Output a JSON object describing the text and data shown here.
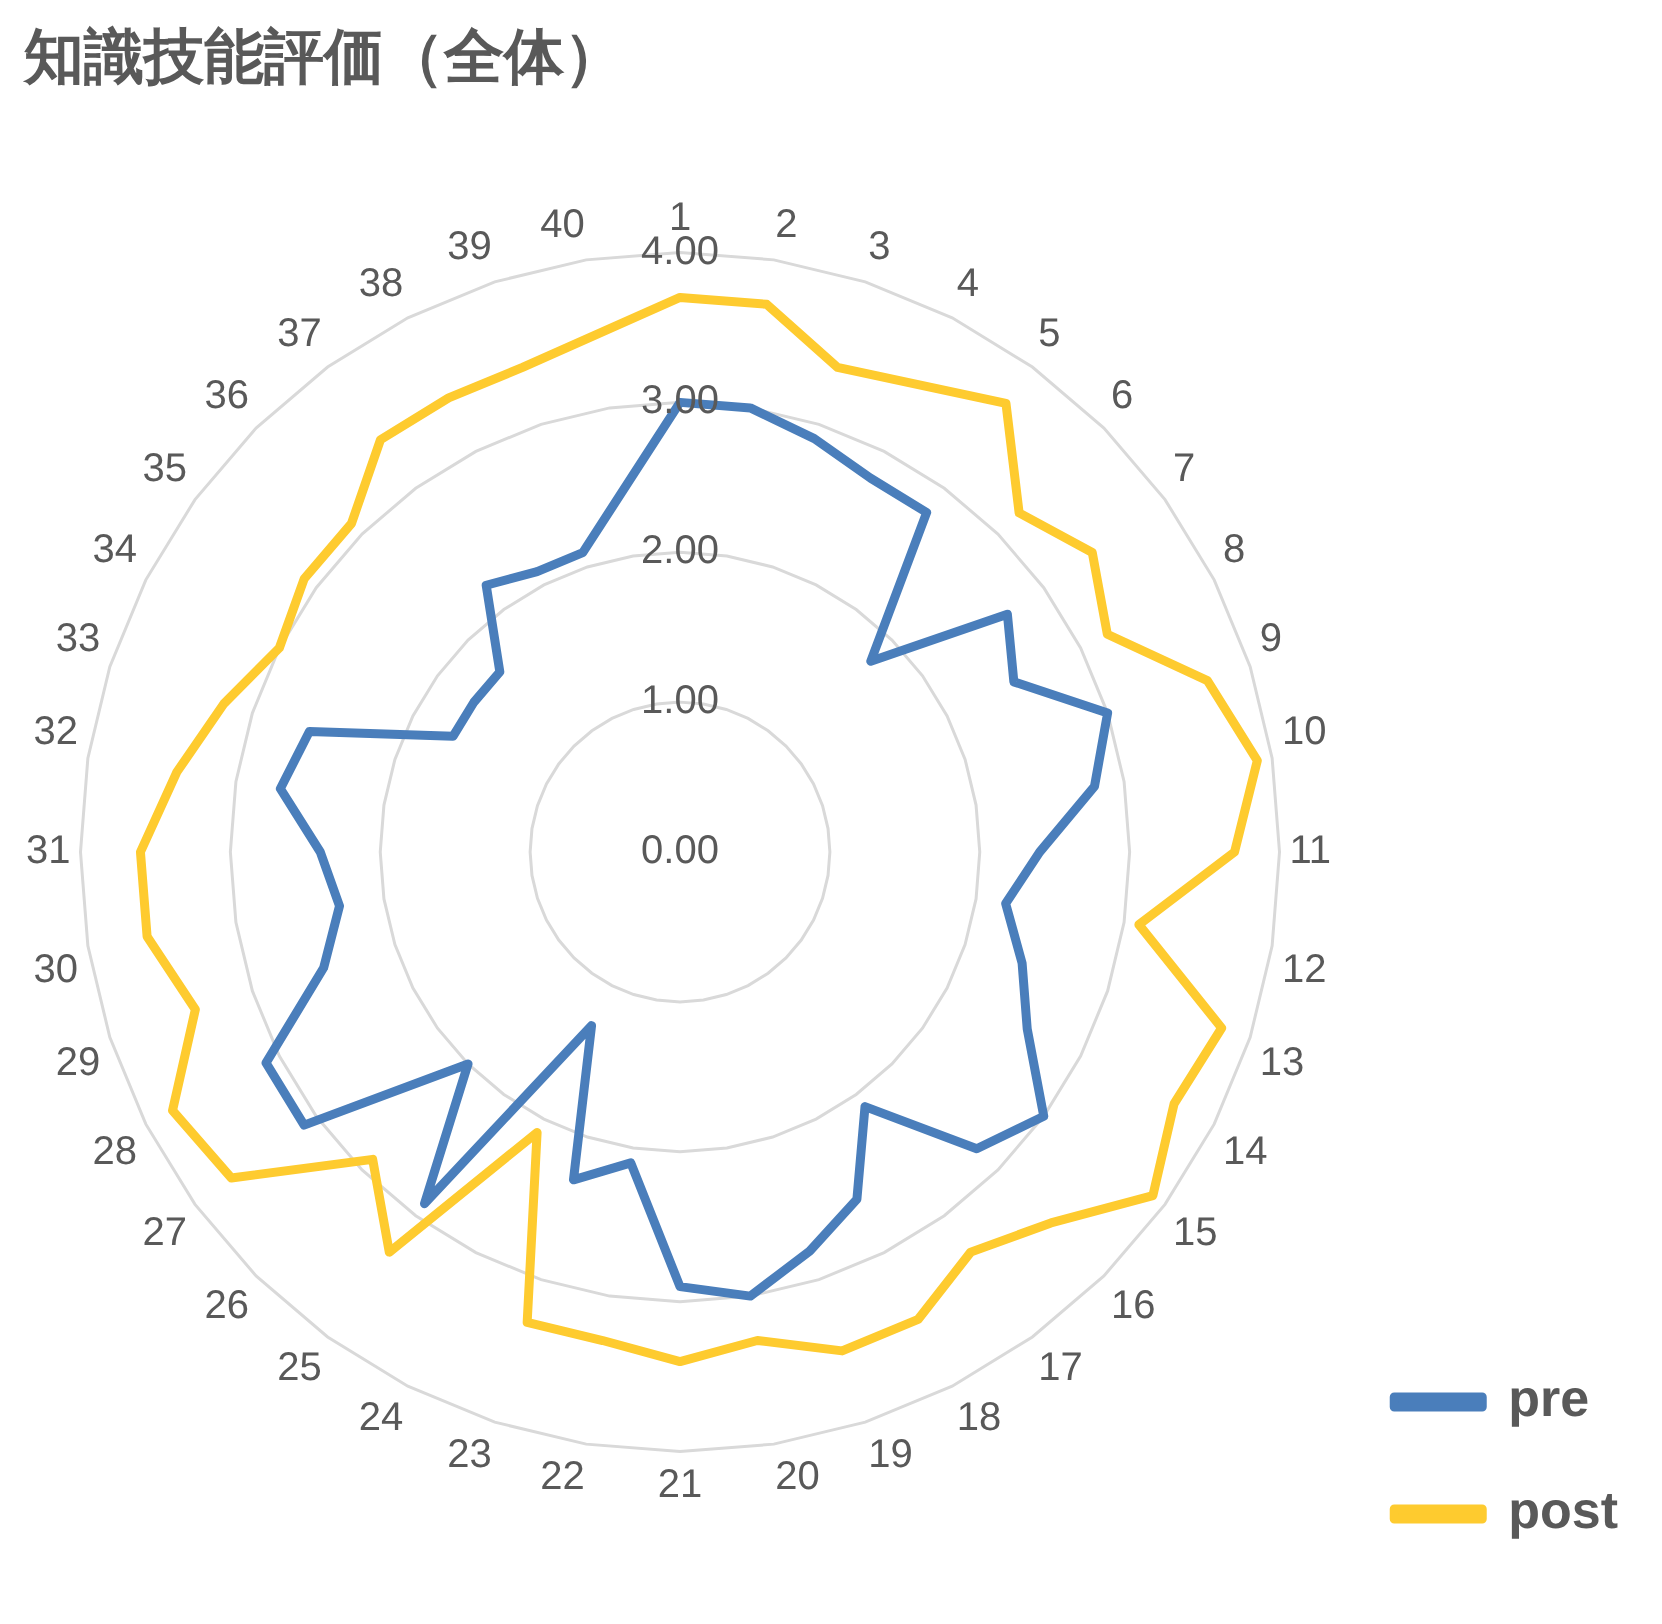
{
  "chart_data": {
    "type": "radar",
    "title": "知識技能評価（全体）",
    "categories": [
      "1",
      "2",
      "3",
      "4",
      "5",
      "6",
      "7",
      "8",
      "9",
      "10",
      "11",
      "12",
      "13",
      "14",
      "15",
      "16",
      "17",
      "18",
      "19",
      "20",
      "21",
      "22",
      "23",
      "24",
      "25",
      "26",
      "27",
      "28",
      "29",
      "30",
      "31",
      "32",
      "33",
      "34",
      "35",
      "36",
      "37",
      "38",
      "39",
      "40"
    ],
    "series": [
      {
        "name": "pre",
        "color": "#4a7ebb",
        "values": [
          3.0,
          3.0,
          2.9,
          2.8,
          2.8,
          1.8,
          2.7,
          2.5,
          3.0,
          2.8,
          2.4,
          2.2,
          2.4,
          2.6,
          3.0,
          2.8,
          2.1,
          2.6,
          2.8,
          3.0,
          2.9,
          2.1,
          2.3,
          1.3,
          2.9,
          2.0,
          3.1,
          3.1,
          2.5,
          2.3,
          2.4,
          2.7,
          2.6,
          1.7,
          1.7,
          1.7,
          2.2,
          2.1,
          2.1,
          null
        ]
      },
      {
        "name": "post",
        "color": "#fecb2f",
        "values": [
          3.7,
          3.7,
          3.4,
          3.5,
          3.7,
          3.2,
          3.4,
          3.2,
          3.7,
          3.9,
          3.7,
          3.1,
          3.8,
          3.7,
          3.9,
          3.5,
          3.3,
          3.5,
          3.5,
          3.3,
          3.4,
          3.3,
          3.3,
          2.1,
          3.3,
          2.9,
          3.7,
          3.8,
          3.4,
          3.6,
          3.6,
          3.4,
          3.2,
          3.0,
          3.1,
          3.1,
          3.4,
          3.4,
          3.4,
          null
        ]
      }
    ],
    "ylim": [
      0,
      4
    ],
    "yticks": [
      {
        "value": 0,
        "label": "0.00"
      },
      {
        "value": 1,
        "label": "1.00"
      },
      {
        "value": 2,
        "label": "2.00"
      },
      {
        "value": 3,
        "label": "3.00"
      },
      {
        "value": 4,
        "label": "4.00"
      }
    ],
    "grid": true,
    "legend": "bottom right",
    "marker": "none",
    "line_style": "solid"
  }
}
